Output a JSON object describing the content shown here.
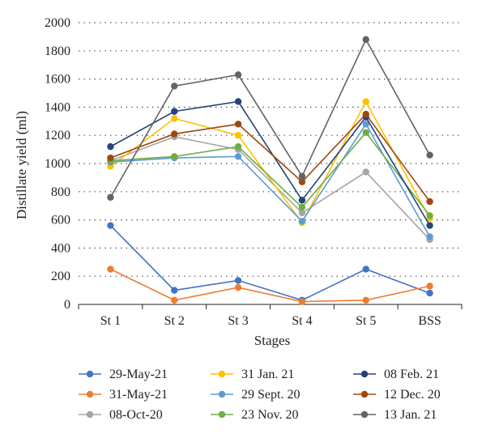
{
  "chart_data": {
    "type": "line",
    "title": "",
    "xlabel": "Stages",
    "ylabel": "Distillate yield (ml)",
    "categories": [
      "St 1",
      "St 2",
      "St 3",
      "St 4",
      "St 5",
      "BSS"
    ],
    "ylim": [
      0,
      2000
    ],
    "yticks": [
      0,
      200,
      400,
      600,
      800,
      1000,
      1200,
      1400,
      1600,
      1800,
      2000
    ],
    "grid": "dotted horizontal",
    "legend_position": "bottom",
    "series": [
      {
        "name": "29-May-21",
        "color": "#4472c4",
        "values": [
          560,
          100,
          170,
          30,
          250,
          80
        ]
      },
      {
        "name": "31-May-21",
        "color": "#ed7d31",
        "values": [
          250,
          30,
          120,
          20,
          30,
          130
        ]
      },
      {
        "name": "08-Oct-20",
        "color": "#a5a5a5",
        "values": [
          1020,
          1190,
          1100,
          650,
          940,
          460
        ]
      },
      {
        "name": "31 Jan. 21",
        "color": "#ffc000",
        "values": [
          980,
          1320,
          1200,
          580,
          1440,
          610
        ]
      },
      {
        "name": "29 Sept. 20",
        "color": "#5b9bd5",
        "values": [
          1010,
          1040,
          1050,
          590,
          1280,
          480
        ]
      },
      {
        "name": "23 Nov. 20",
        "color": "#70ad47",
        "values": [
          1020,
          1050,
          1120,
          690,
          1220,
          630
        ]
      },
      {
        "name": "08 Feb. 21",
        "color": "#264478",
        "values": [
          1120,
          1370,
          1440,
          740,
          1330,
          560
        ]
      },
      {
        "name": "12 Dec. 20",
        "color": "#9e480e",
        "values": [
          1040,
          1210,
          1280,
          870,
          1350,
          730
        ]
      },
      {
        "name": "13 Jan. 21",
        "color": "#636363",
        "values": [
          760,
          1550,
          1630,
          910,
          1880,
          1060
        ]
      }
    ]
  }
}
